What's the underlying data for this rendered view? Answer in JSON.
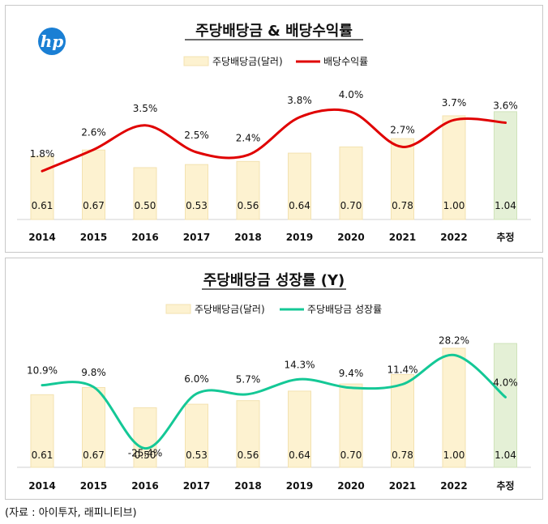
{
  "source_text": "(자료 : 아이투자, 래피니티브)",
  "logo_text": "hp",
  "colors": {
    "bar": "#fdf2d0",
    "bar_stroke": "#f3e2b0",
    "estimate_bar": "#e4f0d6",
    "estimate_stroke": "#cfe3ba",
    "yield_line": "#e00000",
    "growth_line": "#14c896",
    "logo": "#1a7fd4"
  },
  "chart_data": [
    {
      "type": "bar+line",
      "title": "주당배당금 & 배당수익률",
      "categories": [
        "2014",
        "2015",
        "2016",
        "2017",
        "2018",
        "2019",
        "2020",
        "2021",
        "2022",
        "추정"
      ],
      "series": [
        {
          "name": "주당배당금(달러)",
          "type": "bar",
          "values": [
            0.61,
            0.67,
            0.5,
            0.53,
            0.56,
            0.64,
            0.7,
            0.78,
            1.0,
            1.04
          ],
          "labels": [
            "0.61",
            "0.67",
            "0.50",
            "0.53",
            "0.56",
            "0.64",
            "0.70",
            "0.78",
            "1.00",
            "1.04"
          ]
        },
        {
          "name": "배당수익률",
          "type": "line",
          "values": [
            1.8,
            2.6,
            3.5,
            2.5,
            2.4,
            3.8,
            4.0,
            2.7,
            3.7,
            3.6
          ],
          "labels": [
            "1.8%",
            "2.6%",
            "3.5%",
            "2.5%",
            "2.4%",
            "3.8%",
            "4.0%",
            "2.7%",
            "3.7%",
            "3.6%"
          ]
        }
      ],
      "estimate_category": "추정",
      "legend_position": "top",
      "grid": false
    },
    {
      "type": "bar+line",
      "title": "주당배당금 성장률 (Y)",
      "categories": [
        "2014",
        "2015",
        "2016",
        "2017",
        "2018",
        "2019",
        "2020",
        "2021",
        "2022",
        "추정"
      ],
      "series": [
        {
          "name": "주당배당금(달러)",
          "type": "bar",
          "values": [
            0.61,
            0.67,
            0.5,
            0.53,
            0.56,
            0.64,
            0.7,
            0.78,
            1.0,
            1.04
          ],
          "labels": [
            "0.61",
            "0.67",
            "0.50",
            "0.53",
            "0.56",
            "0.64",
            "0.70",
            "0.78",
            "1.00",
            "1.04"
          ]
        },
        {
          "name": "주당배당금 성장률",
          "type": "line",
          "values": [
            10.9,
            9.8,
            -25.4,
            6.0,
            5.7,
            14.3,
            9.4,
            11.4,
            28.2,
            4.0
          ],
          "labels": [
            "10.9%",
            "9.8%",
            "-25.4%",
            "6.0%",
            "5.7%",
            "14.3%",
            "9.4%",
            "11.4%",
            "28.2%",
            "4.0%"
          ]
        }
      ],
      "estimate_category": "추정",
      "legend_position": "top",
      "grid": false
    }
  ]
}
